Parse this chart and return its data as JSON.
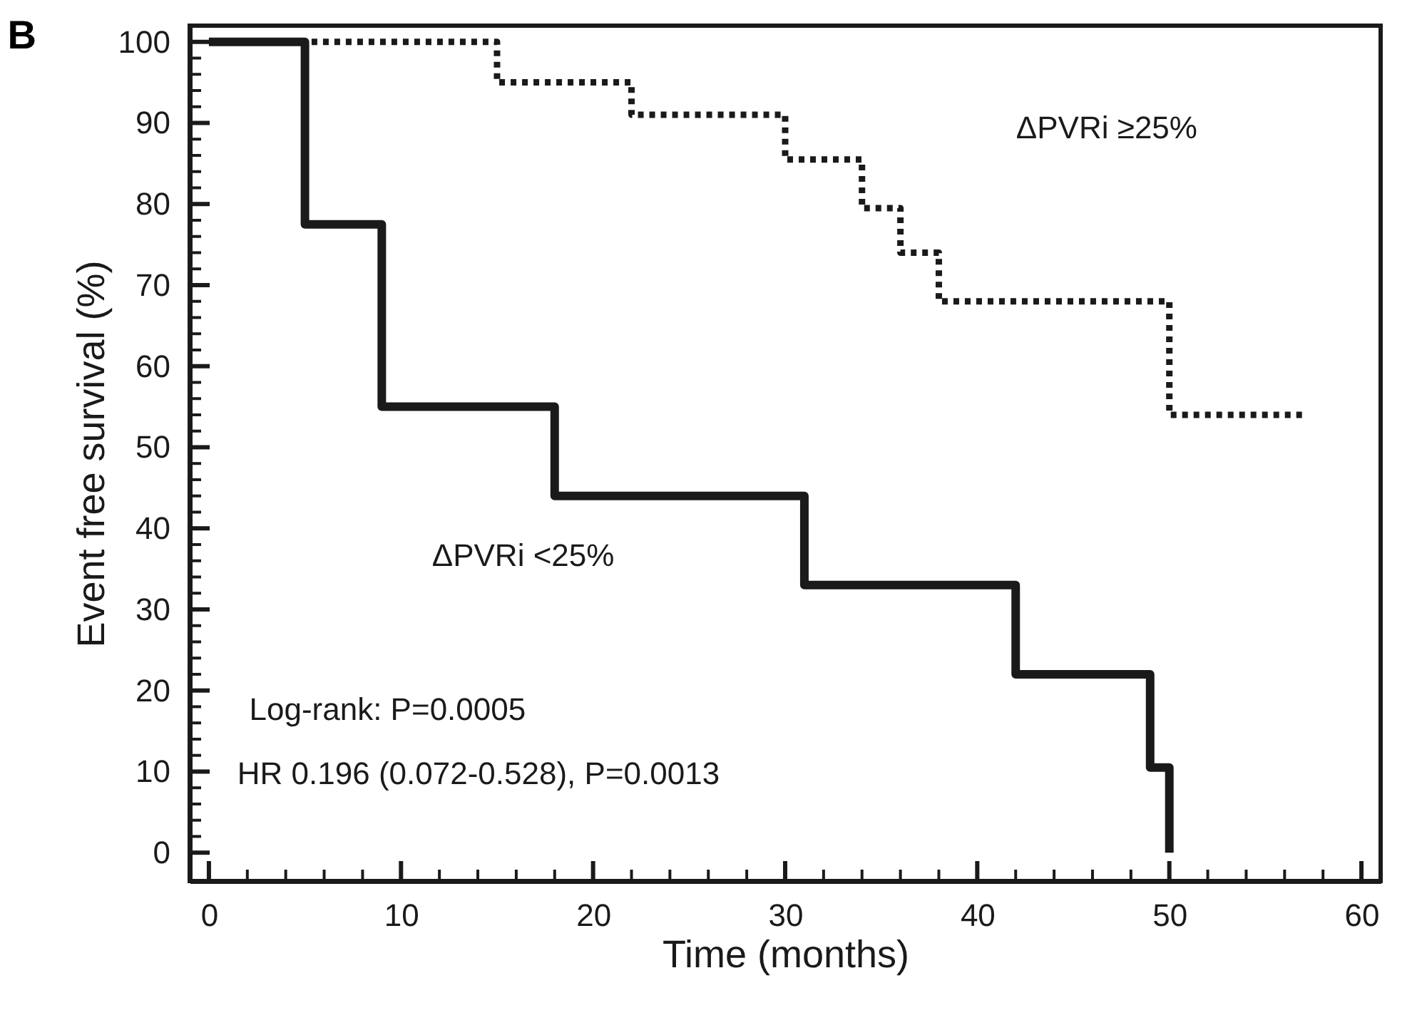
{
  "chart_data": {
    "type": "step",
    "title": "B",
    "xlabel": "Time (months)",
    "ylabel": "Event free survival (%)",
    "xlim": [
      -1,
      61
    ],
    "ylim": [
      -3.5,
      102
    ],
    "xticks": [
      0,
      {
        "value": 2,
        "label": null
      },
      {
        "value": 4,
        "label": null
      },
      {
        "value": 6,
        "label": null
      },
      {
        "value": 8,
        "label": null
      },
      10,
      {
        "value": 12,
        "label": null
      },
      {
        "value": 14,
        "label": null
      },
      {
        "value": 16,
        "label": null
      },
      {
        "value": 18,
        "label": null
      },
      20,
      {
        "value": 22,
        "label": null
      },
      {
        "value": 24,
        "label": null
      },
      {
        "value": 26,
        "label": null
      },
      {
        "value": 28,
        "label": null
      },
      30,
      {
        "value": 32,
        "label": null
      },
      {
        "value": 34,
        "label": null
      },
      {
        "value": 36,
        "label": null
      },
      {
        "value": 38,
        "label": null
      },
      40,
      {
        "value": 42,
        "label": null
      },
      {
        "value": 44,
        "label": null
      },
      {
        "value": 46,
        "label": null
      },
      {
        "value": 48,
        "label": null
      },
      50,
      {
        "value": 52,
        "label": null
      },
      {
        "value": 54,
        "label": null
      },
      {
        "value": 56,
        "label": null
      },
      {
        "value": 58,
        "label": null
      },
      60
    ],
    "yticks": [
      0,
      {
        "value": 2,
        "label": null
      },
      {
        "value": 4,
        "label": null
      },
      {
        "value": 6,
        "label": null
      },
      {
        "value": 8,
        "label": null
      },
      10,
      {
        "value": 12,
        "label": null
      },
      {
        "value": 14,
        "label": null
      },
      {
        "value": 16,
        "label": null
      },
      {
        "value": 18,
        "label": null
      },
      20,
      {
        "value": 22,
        "label": null
      },
      {
        "value": 24,
        "label": null
      },
      {
        "value": 26,
        "label": null
      },
      {
        "value": 28,
        "label": null
      },
      30,
      {
        "value": 32,
        "label": null
      },
      {
        "value": 34,
        "label": null
      },
      {
        "value": 36,
        "label": null
      },
      {
        "value": 38,
        "label": null
      },
      40,
      {
        "value": 42,
        "label": null
      },
      {
        "value": 44,
        "label": null
      },
      {
        "value": 46,
        "label": null
      },
      {
        "value": 48,
        "label": null
      },
      50,
      {
        "value": 52,
        "label": null
      },
      {
        "value": 54,
        "label": null
      },
      {
        "value": 56,
        "label": null
      },
      {
        "value": 58,
        "label": null
      },
      60,
      {
        "value": 62,
        "label": null
      },
      {
        "value": 64,
        "label": null
      },
      {
        "value": 66,
        "label": null
      },
      {
        "value": 68,
        "label": null
      },
      70,
      {
        "value": 72,
        "label": null
      },
      {
        "value": 74,
        "label": null
      },
      {
        "value": 76,
        "label": null
      },
      {
        "value": 78,
        "label": null
      },
      80,
      {
        "value": 82,
        "label": null
      },
      {
        "value": 84,
        "label": null
      },
      {
        "value": 86,
        "label": null
      },
      {
        "value": 88,
        "label": null
      },
      90,
      {
        "value": 92,
        "label": null
      },
      {
        "value": 94,
        "label": null
      },
      {
        "value": 96,
        "label": null
      },
      {
        "value": 98,
        "label": null
      },
      100
    ],
    "grid": false,
    "marker": "none",
    "series": [
      {
        "color": "#1a1a1a",
        "line_style": "solid",
        "x": [
          0,
          5,
          9,
          18,
          31,
          42,
          49,
          50
        ],
        "values": [
          100,
          77.5,
          55,
          44,
          33,
          22,
          10.5,
          0
        ]
      },
      {
        "color": "#1a1a1a",
        "line_style": "dotted",
        "x": [
          0,
          15,
          22,
          30,
          34,
          36,
          38,
          50,
          57
        ],
        "values": [
          100,
          95,
          91,
          85.5,
          79.5,
          74,
          68,
          54,
          54
        ]
      }
    ],
    "annotations": [
      "ΔPVRi ≥25%",
      "ΔPVRi <25%",
      "Log-rank: P=0.0005",
      "HR 0.196 (0.072-0.528), P=0.0013"
    ]
  }
}
